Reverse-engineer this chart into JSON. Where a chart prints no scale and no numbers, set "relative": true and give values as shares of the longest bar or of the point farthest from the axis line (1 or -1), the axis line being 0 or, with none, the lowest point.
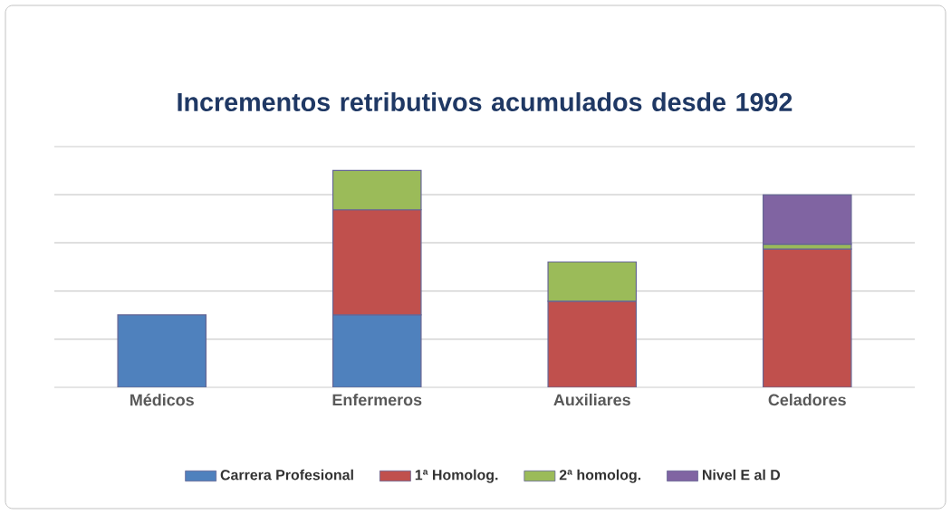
{
  "chart_data": {
    "type": "bar",
    "title": "Incrementos retributivos acumulados desde 1992",
    "categories": [
      "Médicos",
      "Enfermeros",
      "Auxiliares",
      "Celadores"
    ],
    "stacked": true,
    "relative": true,
    "grid": "y",
    "legend": "bottom",
    "series": [
      {
        "name": "Carrera Profesional",
        "color": "#4f81bd",
        "values": [
          0.334,
          0.334,
          null,
          null
        ]
      },
      {
        "name": "1ª Homolog.",
        "color": "#c0504d",
        "values": [
          null,
          0.485,
          0.397,
          0.638
        ]
      },
      {
        "name": "2ª homolog.",
        "color": "#9bbb59",
        "values": [
          null,
          0.181,
          0.181,
          0.022
        ]
      },
      {
        "name": "Nivel E al D",
        "color": "#8064a2",
        "values": [
          null,
          null,
          null,
          0.227
        ]
      }
    ]
  }
}
